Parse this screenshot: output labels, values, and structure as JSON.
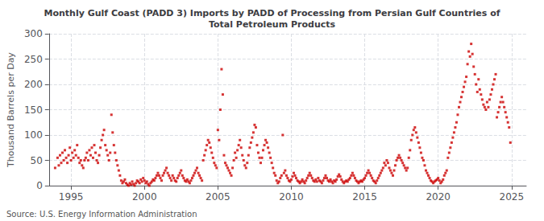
{
  "chart_data": {
    "type": "scatter",
    "title": "Monthly Gulf Coast (PADD 3) Imports by PADD of Processing from Persian Gulf Countries of\nTotal Petroleum Products",
    "ylabel": "Thousand Barrels per Day",
    "source": "Source: U.S. Energy Information Administration",
    "color": "#cc0000",
    "marker": "square",
    "grid": true,
    "xlim": [
      1993.5,
      2026.0
    ],
    "ylim": [
      0,
      300
    ],
    "xticks": [
      1995,
      2000,
      2005,
      2010,
      2015,
      2020,
      2025
    ],
    "yticks": [
      0,
      50,
      100,
      150,
      200,
      250,
      300
    ],
    "x": [
      1993.917,
      1994.083,
      1994.167,
      1994.25,
      1994.333,
      1994.417,
      1994.5,
      1994.583,
      1994.667,
      1994.75,
      1994.833,
      1994.917,
      1995.0,
      1995.083,
      1995.167,
      1995.25,
      1995.333,
      1995.417,
      1995.5,
      1995.583,
      1995.667,
      1995.75,
      1995.833,
      1995.917,
      1996.0,
      1996.083,
      1996.167,
      1996.25,
      1996.333,
      1996.417,
      1996.5,
      1996.583,
      1996.667,
      1996.75,
      1996.833,
      1996.917,
      1997.0,
      1997.083,
      1997.167,
      1997.25,
      1997.333,
      1997.417,
      1997.5,
      1997.583,
      1997.667,
      1997.75,
      1997.833,
      1997.917,
      1998.0,
      1998.083,
      1998.167,
      1998.25,
      1998.333,
      1998.417,
      1998.5,
      1998.583,
      1998.667,
      1998.75,
      1998.833,
      1998.917,
      1999.0,
      1999.083,
      1999.167,
      1999.25,
      1999.333,
      1999.417,
      1999.5,
      1999.583,
      1999.667,
      1999.75,
      1999.833,
      1999.917,
      2000.0,
      2000.083,
      2000.167,
      2000.25,
      2000.333,
      2000.417,
      2000.5,
      2000.583,
      2000.667,
      2000.75,
      2000.833,
      2000.917,
      2001.0,
      2001.083,
      2001.167,
      2001.25,
      2001.333,
      2001.417,
      2001.5,
      2001.583,
      2001.667,
      2001.75,
      2001.833,
      2001.917,
      2002.0,
      2002.083,
      2002.167,
      2002.25,
      2002.333,
      2002.417,
      2002.5,
      2002.583,
      2002.667,
      2002.75,
      2002.833,
      2002.917,
      2003.0,
      2003.083,
      2003.167,
      2003.25,
      2003.333,
      2003.417,
      2003.5,
      2003.583,
      2003.667,
      2003.75,
      2003.833,
      2003.917,
      2004.0,
      2004.083,
      2004.167,
      2004.25,
      2004.333,
      2004.417,
      2004.5,
      2004.583,
      2004.667,
      2004.75,
      2004.833,
      2004.917,
      2005.0,
      2005.083,
      2005.167,
      2005.25,
      2005.333,
      2005.417,
      2005.5,
      2005.583,
      2005.667,
      2005.75,
      2005.833,
      2005.917,
      2006.0,
      2006.083,
      2006.167,
      2006.25,
      2006.333,
      2006.417,
      2006.5,
      2006.583,
      2006.667,
      2006.75,
      2006.833,
      2006.917,
      2007.0,
      2007.083,
      2007.167,
      2007.25,
      2007.333,
      2007.417,
      2007.5,
      2007.583,
      2007.667,
      2007.75,
      2007.833,
      2007.917,
      2008.0,
      2008.083,
      2008.167,
      2008.25,
      2008.333,
      2008.417,
      2008.5,
      2008.583,
      2008.667,
      2008.75,
      2008.833,
      2008.917,
      2009.0,
      2009.083,
      2009.167,
      2009.25,
      2009.333,
      2009.417,
      2009.5,
      2009.583,
      2009.667,
      2009.75,
      2009.833,
      2009.917,
      2010.0,
      2010.083,
      2010.167,
      2010.25,
      2010.333,
      2010.417,
      2010.5,
      2010.583,
      2010.667,
      2010.75,
      2010.833,
      2010.917,
      2011.0,
      2011.083,
      2011.167,
      2011.25,
      2011.333,
      2011.417,
      2011.5,
      2011.583,
      2011.667,
      2011.75,
      2011.833,
      2011.917,
      2012.0,
      2012.083,
      2012.167,
      2012.25,
      2012.333,
      2012.417,
      2012.5,
      2012.583,
      2012.667,
      2012.75,
      2012.833,
      2012.917,
      2013.0,
      2013.083,
      2013.167,
      2013.25,
      2013.333,
      2013.417,
      2013.5,
      2013.583,
      2013.667,
      2013.75,
      2013.833,
      2013.917,
      2014.0,
      2014.083,
      2014.167,
      2014.25,
      2014.333,
      2014.417,
      2014.5,
      2014.583,
      2014.667,
      2014.75,
      2014.833,
      2014.917,
      2015.0,
      2015.083,
      2015.167,
      2015.25,
      2015.333,
      2015.417,
      2015.5,
      2015.583,
      2015.667,
      2015.75,
      2015.833,
      2015.917,
      2016.0,
      2016.083,
      2016.167,
      2016.25,
      2016.333,
      2016.417,
      2016.5,
      2016.583,
      2016.667,
      2016.75,
      2016.833,
      2016.917,
      2017.0,
      2017.083,
      2017.167,
      2017.25,
      2017.333,
      2017.417,
      2017.5,
      2017.583,
      2017.667,
      2017.75,
      2017.833,
      2017.917,
      2018.0,
      2018.083,
      2018.167,
      2018.25,
      2018.333,
      2018.417,
      2018.5,
      2018.583,
      2018.667,
      2018.75,
      2018.833,
      2018.917,
      2019.0,
      2019.083,
      2019.167,
      2019.25,
      2019.333,
      2019.417,
      2019.5,
      2019.583,
      2019.667,
      2019.75,
      2019.833,
      2019.917,
      2020.0,
      2020.083,
      2020.167,
      2020.25,
      2020.333,
      2020.417,
      2020.5,
      2020.583,
      2020.667,
      2020.75,
      2020.833,
      2020.917,
      2021.0,
      2021.083,
      2021.167,
      2021.25,
      2021.333,
      2021.417,
      2021.5,
      2021.583,
      2021.667,
      2021.75,
      2021.833,
      2021.917,
      2022.0,
      2022.083,
      2022.167,
      2022.25,
      2022.333,
      2022.417,
      2022.5,
      2022.583,
      2022.667,
      2022.75,
      2022.833,
      2022.917,
      2023.0,
      2023.083,
      2023.167,
      2023.25,
      2023.333,
      2023.417,
      2023.5,
      2023.583,
      2023.667,
      2023.75,
      2023.833,
      2023.917,
      2024.0,
      2024.083,
      2024.167,
      2024.25,
      2024.333,
      2024.417,
      2024.5,
      2024.583,
      2024.667,
      2024.75,
      2024.833,
      2024.917
    ],
    "values": [
      35,
      55,
      40,
      60,
      45,
      65,
      50,
      70,
      55,
      45,
      60,
      75,
      50,
      65,
      55,
      70,
      60,
      80,
      55,
      45,
      50,
      40,
      35,
      50,
      55,
      65,
      50,
      70,
      60,
      75,
      55,
      80,
      65,
      50,
      45,
      60,
      75,
      90,
      100,
      110,
      80,
      70,
      60,
      50,
      65,
      140,
      105,
      80,
      65,
      50,
      40,
      30,
      20,
      10,
      5,
      8,
      12,
      5,
      2,
      0,
      5,
      2,
      8,
      3,
      0,
      5,
      10,
      8,
      5,
      12,
      8,
      15,
      10,
      5,
      8,
      3,
      0,
      5,
      8,
      12,
      10,
      15,
      20,
      25,
      20,
      15,
      10,
      20,
      25,
      30,
      35,
      25,
      20,
      15,
      10,
      20,
      15,
      10,
      8,
      15,
      20,
      25,
      30,
      20,
      15,
      10,
      8,
      12,
      8,
      5,
      10,
      15,
      20,
      25,
      30,
      35,
      25,
      20,
      15,
      10,
      50,
      60,
      70,
      80,
      90,
      85,
      75,
      65,
      55,
      45,
      40,
      35,
      110,
      90,
      150,
      230,
      180,
      60,
      45,
      40,
      35,
      30,
      25,
      20,
      35,
      50,
      65,
      55,
      70,
      80,
      90,
      75,
      60,
      50,
      40,
      35,
      45,
      60,
      75,
      85,
      95,
      105,
      120,
      115,
      80,
      65,
      55,
      45,
      55,
      70,
      80,
      90,
      85,
      75,
      65,
      55,
      45,
      35,
      25,
      20,
      10,
      5,
      8,
      15,
      20,
      100,
      25,
      30,
      20,
      15,
      10,
      8,
      12,
      18,
      25,
      20,
      15,
      10,
      8,
      5,
      8,
      12,
      8,
      5,
      10,
      15,
      20,
      25,
      20,
      15,
      10,
      8,
      12,
      8,
      15,
      10,
      8,
      5,
      10,
      15,
      20,
      15,
      10,
      8,
      12,
      8,
      5,
      10,
      8,
      12,
      18,
      22,
      18,
      12,
      8,
      5,
      8,
      10,
      8,
      12,
      15,
      20,
      25,
      20,
      15,
      10,
      8,
      5,
      8,
      10,
      8,
      12,
      15,
      20,
      25,
      30,
      25,
      20,
      15,
      10,
      8,
      5,
      10,
      15,
      20,
      25,
      30,
      35,
      45,
      40,
      50,
      45,
      35,
      30,
      25,
      20,
      30,
      40,
      50,
      55,
      60,
      55,
      50,
      45,
      40,
      35,
      30,
      35,
      55,
      70,
      90,
      100,
      110,
      115,
      105,
      95,
      85,
      75,
      65,
      55,
      50,
      40,
      30,
      25,
      20,
      15,
      10,
      8,
      5,
      8,
      10,
      12,
      15,
      10,
      5,
      8,
      12,
      20,
      25,
      30,
      55,
      65,
      75,
      85,
      95,
      105,
      115,
      125,
      140,
      155,
      165,
      175,
      185,
      195,
      205,
      215,
      240,
      265,
      255,
      280,
      260,
      235,
      220,
      200,
      185,
      210,
      190,
      180,
      170,
      160,
      155,
      150,
      165,
      155,
      170,
      180,
      190,
      200,
      210,
      220,
      135,
      145,
      155,
      165,
      175,
      165,
      155,
      145,
      135,
      125,
      115,
      85
    ]
  }
}
